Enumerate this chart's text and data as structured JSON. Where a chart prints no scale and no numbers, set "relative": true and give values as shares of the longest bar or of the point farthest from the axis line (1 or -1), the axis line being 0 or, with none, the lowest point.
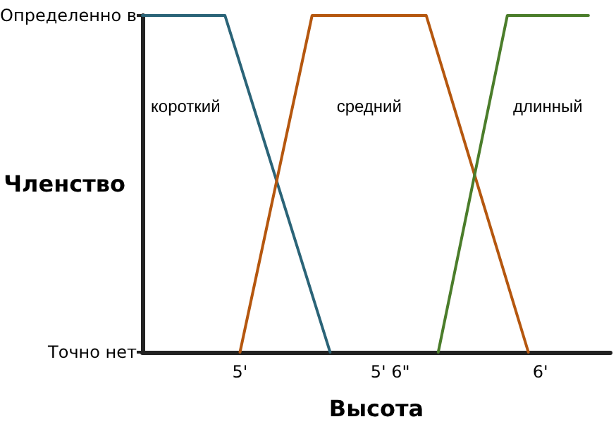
{
  "chart_data": {
    "type": "line",
    "xlabel": "Высота",
    "ylabel": "Членство",
    "relative": true,
    "xlim": [
      4.675,
      6.233
    ],
    "xticks": [
      {
        "value": 5,
        "label": "5'"
      },
      {
        "value": 5.5,
        "label": "5' 6\""
      },
      {
        "value": 6,
        "label": "6'"
      }
    ],
    "annotations": [
      "Определенно в",
      "Точно нет"
    ],
    "grid": false,
    "legend": false,
    "marker": "none",
    "line_style": "solid",
    "series": [
      {
        "name": "короткий",
        "color": "#2b6478",
        "x": [
          4.675,
          4.95,
          5.3
        ],
        "values": [
          1,
          1,
          0
        ]
      },
      {
        "name": "средний",
        "color": "#b5570f",
        "x": [
          5.0,
          5.24,
          5.62,
          5.96
        ],
        "values": [
          0,
          1,
          1,
          0
        ]
      },
      {
        "name": "длинный",
        "color": "#4b7d2b",
        "x": [
          5.66,
          5.89,
          6.16
        ],
        "values": [
          0,
          1,
          1
        ]
      }
    ]
  }
}
